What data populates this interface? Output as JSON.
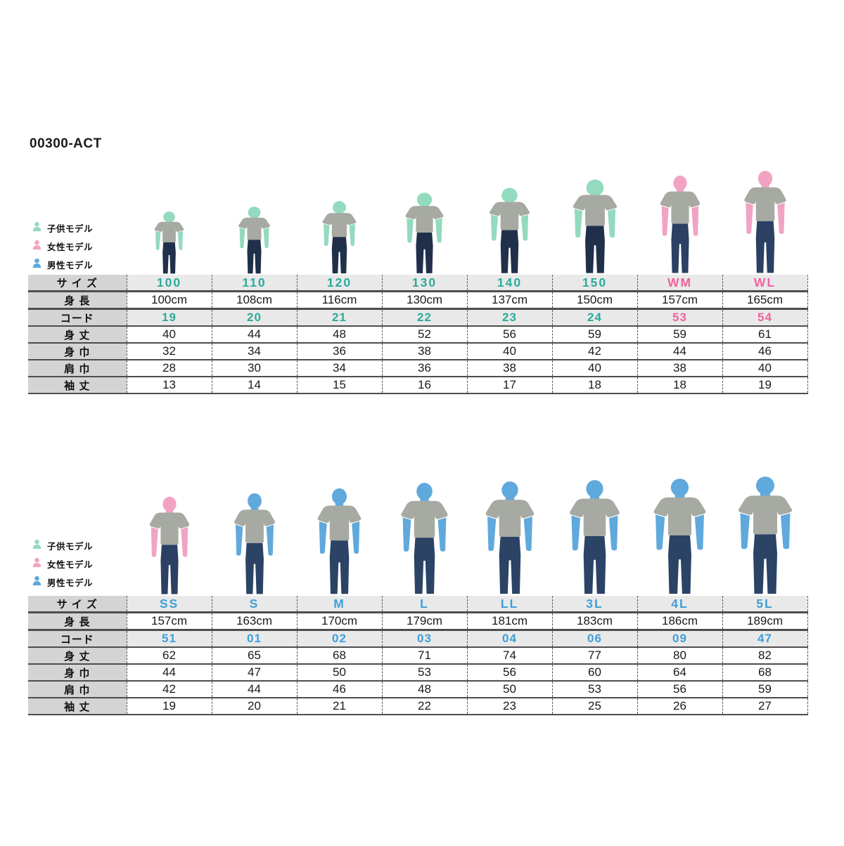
{
  "title": "00300-ACT",
  "legend": [
    {
      "label": "子供モデル",
      "model": "child"
    },
    {
      "label": "女性モデル",
      "model": "female"
    },
    {
      "label": "男性モデル",
      "model": "male"
    }
  ],
  "labels": {
    "size": "サ イ ズ",
    "height": "身 長",
    "code": "コード"
  },
  "colors": {
    "accent_teal": "#2BAB9B",
    "accent_pink": "#EF629E",
    "accent_blue": "#3E9FD8",
    "child_skin": "#93DABF",
    "female_skin": "#F2A3C4",
    "male_skin": "#5FA9DC",
    "shirt_gray": "#A7AAA2",
    "jeans_child": "#20304B",
    "jeans_female": "#2B4063",
    "jeans_male": "#2B4365",
    "row_stripe_bg": "#E9E9E9",
    "label_col_bg": "#D4D4D4",
    "table_border": "#4D4D4D"
  },
  "tables": [
    {
      "id": "kids-women",
      "columns": [
        {
          "size": "100",
          "height": "100cm",
          "code": "19",
          "model": "child",
          "height_cm": 100,
          "accent": "teal"
        },
        {
          "size": "110",
          "height": "108cm",
          "code": "20",
          "model": "child",
          "height_cm": 108,
          "accent": "teal"
        },
        {
          "size": "120",
          "height": "116cm",
          "code": "21",
          "model": "child",
          "height_cm": 116,
          "accent": "teal"
        },
        {
          "size": "130",
          "height": "130cm",
          "code": "22",
          "model": "child",
          "height_cm": 130,
          "accent": "teal"
        },
        {
          "size": "140",
          "height": "137cm",
          "code": "23",
          "model": "child",
          "height_cm": 137,
          "accent": "teal"
        },
        {
          "size": "150",
          "height": "150cm",
          "code": "24",
          "model": "child",
          "height_cm": 150,
          "accent": "teal"
        },
        {
          "size": "WM",
          "height": "157cm",
          "code": "53",
          "model": "female",
          "height_cm": 157,
          "accent": "pink"
        },
        {
          "size": "WL",
          "height": "165cm",
          "code": "54",
          "model": "female",
          "height_cm": 165,
          "accent": "pink"
        }
      ],
      "measurements": [
        {
          "label": "身 丈",
          "values": [
            "40",
            "44",
            "48",
            "52",
            "56",
            "59",
            "59",
            "61"
          ]
        },
        {
          "label": "身 巾",
          "values": [
            "32",
            "34",
            "36",
            "38",
            "40",
            "42",
            "44",
            "46"
          ]
        },
        {
          "label": "肩 巾",
          "values": [
            "28",
            "30",
            "34",
            "36",
            "38",
            "40",
            "38",
            "40"
          ]
        },
        {
          "label": "袖 丈",
          "values": [
            "13",
            "14",
            "15",
            "16",
            "17",
            "18",
            "18",
            "19"
          ]
        }
      ]
    },
    {
      "id": "adults",
      "columns": [
        {
          "size": "SS",
          "height": "157cm",
          "code": "51",
          "model": "female",
          "height_cm": 157,
          "accent": "blue"
        },
        {
          "size": "S",
          "height": "163cm",
          "code": "01",
          "model": "male",
          "height_cm": 163,
          "accent": "blue"
        },
        {
          "size": "M",
          "height": "170cm",
          "code": "02",
          "model": "male",
          "height_cm": 170,
          "accent": "blue"
        },
        {
          "size": "L",
          "height": "179cm",
          "code": "03",
          "model": "male",
          "height_cm": 179,
          "accent": "blue"
        },
        {
          "size": "LL",
          "height": "181cm",
          "code": "04",
          "model": "male",
          "height_cm": 181,
          "accent": "blue"
        },
        {
          "size": "3L",
          "height": "183cm",
          "code": "06",
          "model": "male",
          "height_cm": 183,
          "accent": "blue"
        },
        {
          "size": "4L",
          "height": "186cm",
          "code": "09",
          "model": "male",
          "height_cm": 186,
          "accent": "blue"
        },
        {
          "size": "5L",
          "height": "189cm",
          "code": "47",
          "model": "male",
          "height_cm": 189,
          "accent": "blue"
        }
      ],
      "measurements": [
        {
          "label": "身 丈",
          "values": [
            "62",
            "65",
            "68",
            "71",
            "74",
            "77",
            "80",
            "82"
          ]
        },
        {
          "label": "身 巾",
          "values": [
            "44",
            "47",
            "50",
            "53",
            "56",
            "60",
            "64",
            "68"
          ]
        },
        {
          "label": "肩 巾",
          "values": [
            "42",
            "44",
            "46",
            "48",
            "50",
            "53",
            "56",
            "59"
          ]
        },
        {
          "label": "袖 丈",
          "values": [
            "19",
            "20",
            "21",
            "22",
            "23",
            "25",
            "26",
            "27"
          ]
        }
      ]
    }
  ]
}
